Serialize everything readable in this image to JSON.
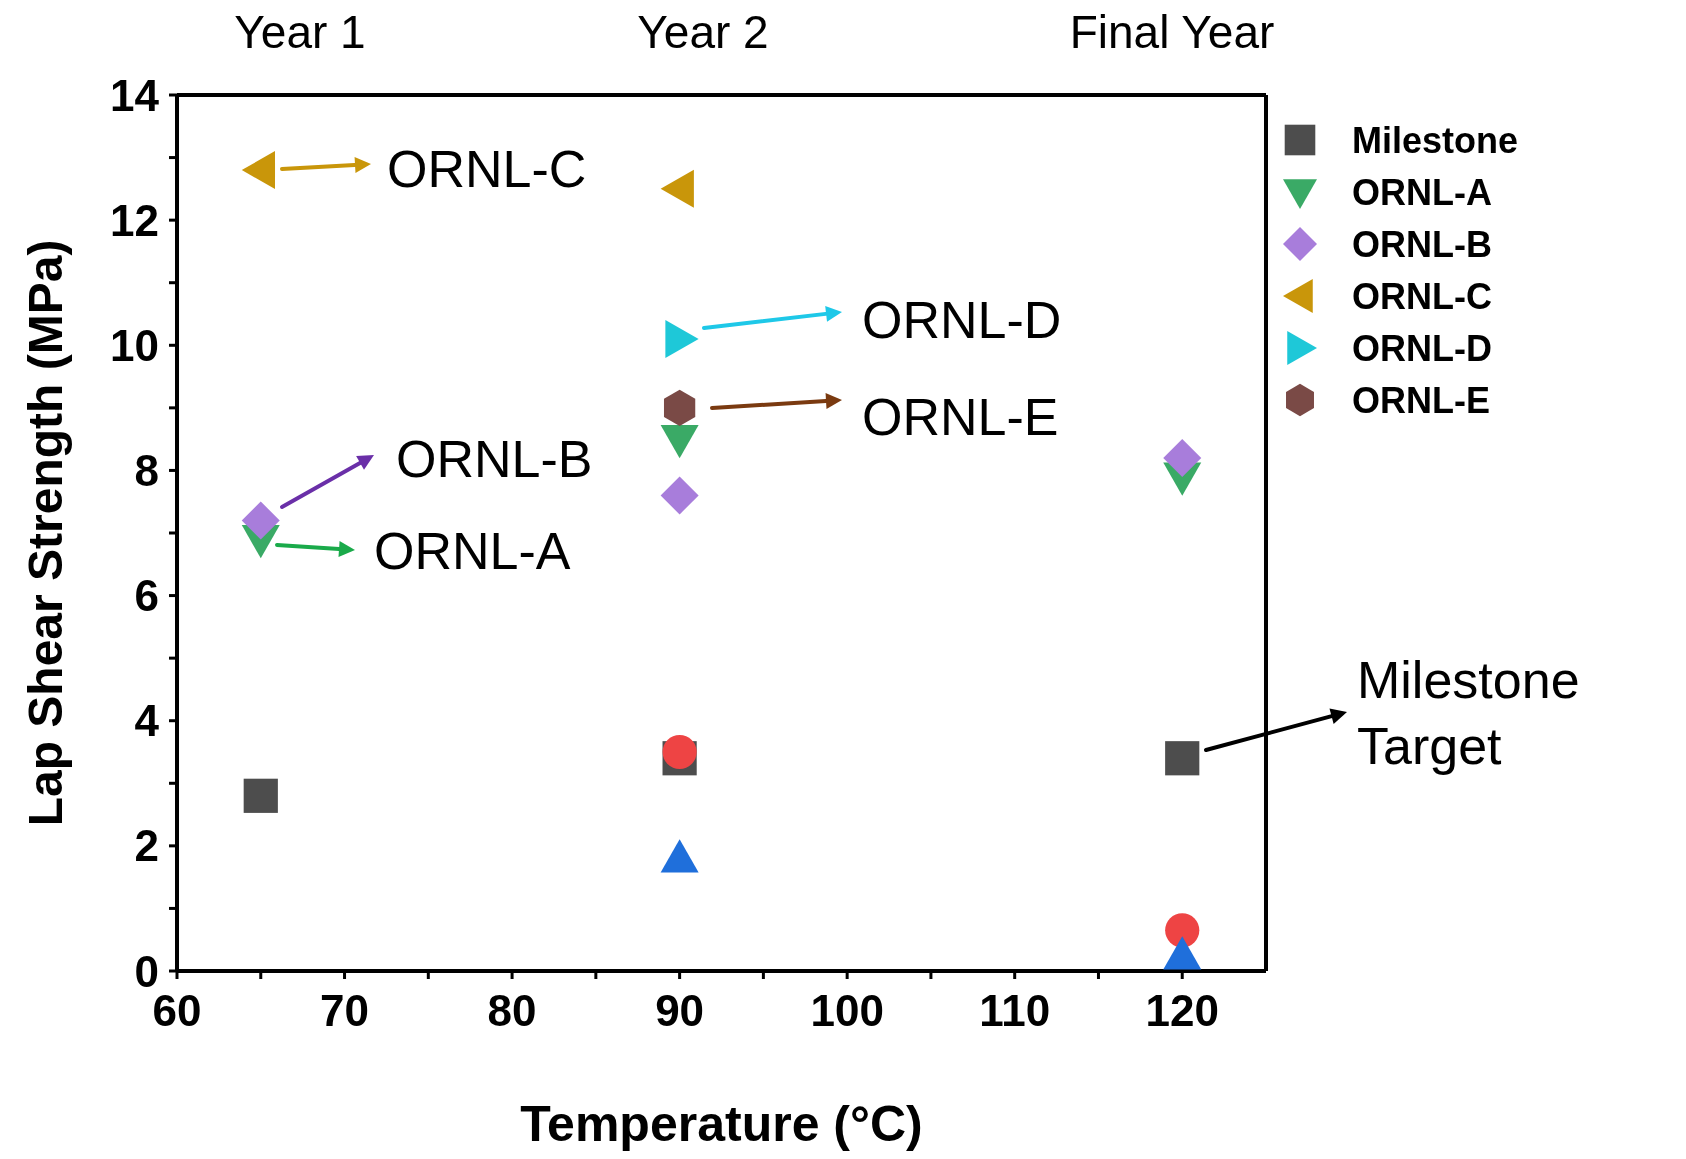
{
  "chart_data": {
    "type": "scatter",
    "xlabel": "Temperature (°C)",
    "ylabel": "Lap Shear Strength (MPa)",
    "xlim": [
      60,
      125
    ],
    "ylim": [
      0,
      14
    ],
    "xticks": [
      60,
      {
        "value": 65,
        "label": null
      },
      70,
      {
        "value": 75,
        "label": null
      },
      80,
      {
        "value": 85,
        "label": null
      },
      90,
      {
        "value": 95,
        "label": null
      },
      100,
      {
        "value": 105,
        "label": null
      },
      110,
      {
        "value": 115,
        "label": null
      },
      120
    ],
    "yticks": [
      0,
      {
        "value": 1,
        "label": null
      },
      2,
      {
        "value": 3,
        "label": null
      },
      4,
      {
        "value": 5,
        "label": null
      },
      6,
      {
        "value": 7,
        "label": null
      },
      8,
      {
        "value": 9,
        "label": null
      },
      10,
      {
        "value": 11,
        "label": null
      },
      12,
      {
        "value": 13,
        "label": null
      },
      14
    ],
    "legend": "right",
    "series": [
      {
        "name": "Milestone",
        "color": "#4d4d4d",
        "marker": "square",
        "x": [
          65,
          90,
          120
        ],
        "values": [
          2.8,
          3.4,
          3.4
        ]
      },
      {
        "color": "#ee4444",
        "marker": "circle",
        "x": [
          90,
          120
        ],
        "values": [
          3.5,
          0.65
        ]
      },
      {
        "color": "#1f6fdb",
        "marker": "triangle",
        "x": [
          90,
          120
        ],
        "values": [
          1.8,
          0.25
        ]
      },
      {
        "name": "ORNL-A",
        "color": "#3aaa66",
        "marker": "triangle-down",
        "x": [
          65,
          90,
          120
        ],
        "values": [
          6.9,
          8.5,
          7.9
        ]
      },
      {
        "name": "ORNL-B",
        "color": "#a87ddb",
        "marker": "diamond",
        "x": [
          65,
          90,
          120
        ],
        "values": [
          7.2,
          7.6,
          8.2
        ]
      },
      {
        "name": "ORNL-C",
        "color": "#c9960a",
        "marker": "triangle-left",
        "x": [
          65,
          90
        ],
        "values": [
          12.8,
          12.5
        ]
      },
      {
        "name": "ORNL-D",
        "color": "#1ec8d8",
        "marker": "triangle-right",
        "x": [
          90
        ],
        "values": [
          10.1
        ]
      },
      {
        "name": "ORNL-E",
        "color": "#7a4a46",
        "x": [
          90
        ],
        "values": [
          9.0
        ]
      }
    ],
    "annotations": [
      "Year 1",
      "Year 2",
      "Final Year",
      "ORNL-C",
      "ORNL-B",
      "ORNL-A",
      "ORNL-D",
      "ORNL-E",
      "Milestone Target"
    ]
  }
}
